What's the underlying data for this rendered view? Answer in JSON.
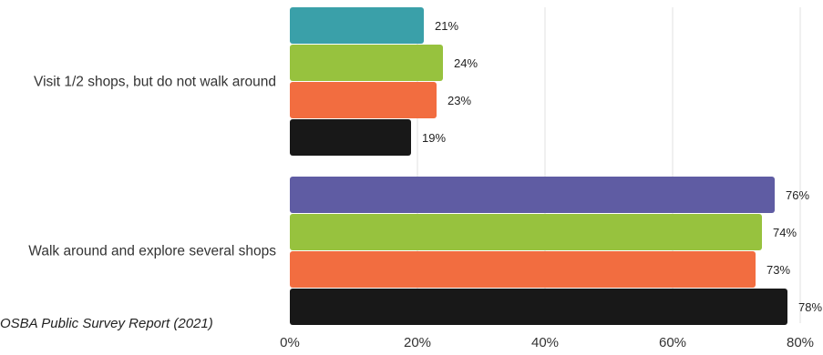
{
  "source_note": "OSBA Public Survey Report (2021)",
  "chart_data": {
    "type": "bar",
    "orientation": "horizontal",
    "xlim": [
      0,
      80
    ],
    "x_ticks": [
      "0%",
      "20%",
      "40%",
      "60%",
      "80%"
    ],
    "grid": true,
    "legend": "none",
    "groups": [
      {
        "category": "Visit 1/2 shops, but do not walk around",
        "bars": [
          {
            "value": 21,
            "label": "21%",
            "color": "#3aa0a9"
          },
          {
            "value": 24,
            "label": "24%",
            "color": "#97c23e"
          },
          {
            "value": 23,
            "label": "23%",
            "color": "#f26d40"
          },
          {
            "value": 19,
            "label": "19%",
            "color": "#181818"
          }
        ]
      },
      {
        "category": "Walk around and explore several shops",
        "bars": [
          {
            "value": 76,
            "label": "76%",
            "color": "#5f5ca3"
          },
          {
            "value": 74,
            "label": "74%",
            "color": "#97c23e"
          },
          {
            "value": 73,
            "label": "73%",
            "color": "#f26d40"
          },
          {
            "value": 78,
            "label": "78%",
            "color": "#181818"
          }
        ]
      }
    ]
  }
}
